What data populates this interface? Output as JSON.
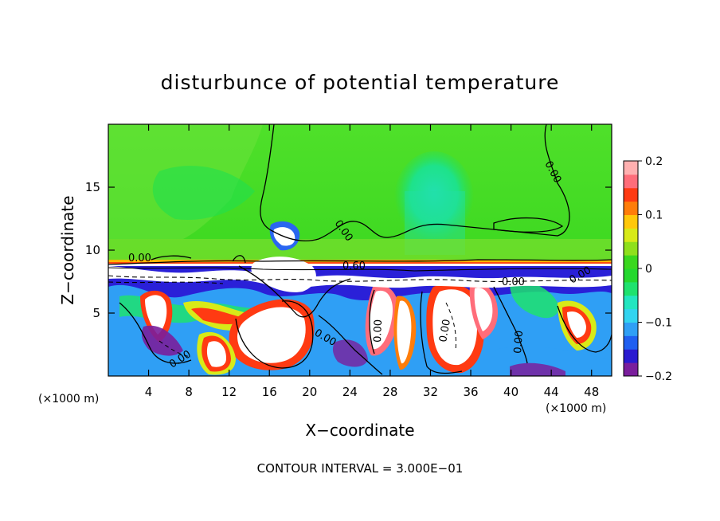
{
  "chart_data": {
    "type": "heatmap",
    "title": "disturbunce of potential temperature",
    "xlabel": "X−coordinate",
    "ylabel": "Z−coordinate",
    "x_unit_left": "(×1000 m)",
    "x_unit_right": "(×1000 m)",
    "xlim": [
      0,
      50
    ],
    "ylim": [
      0,
      20
    ],
    "x_ticks": [
      "4",
      "8",
      "12",
      "16",
      "20",
      "24",
      "28",
      "32",
      "36",
      "40",
      "44",
      "48"
    ],
    "x_tick_values": [
      4,
      8,
      12,
      16,
      20,
      24,
      28,
      32,
      36,
      40,
      44,
      48
    ],
    "y_ticks": [
      "5",
      "10",
      "15"
    ],
    "y_tick_values": [
      5,
      10,
      15
    ],
    "colorbar": {
      "min": -0.2,
      "max": 0.2,
      "tick_labels": [
        "0.2",
        "0.1",
        "0",
        "−0.1",
        "−0.2"
      ],
      "tick_values": [
        0.2,
        0.1,
        0,
        -0.1,
        -0.2
      ],
      "colors": [
        "#7a1e9c",
        "#2a1bd0",
        "#1f5ff0",
        "#2f9ff5",
        "#32d4f0",
        "#22e6c0",
        "#1ee26e",
        "#24d82e",
        "#3ad81e",
        "#8fe01c",
        "#d8ea18",
        "#ffc80a",
        "#ff7d0a",
        "#ff3a12",
        "#ff6d7a",
        "#ffb0b0"
      ]
    },
    "contour_labels": [
      "0.00",
      "0.00",
      "0.00",
      "0.00",
      "0.60",
      "0.00",
      "0.00",
      "0.00",
      "0.00",
      "0.00",
      "0.00"
    ],
    "footer": "CONTOUR INTERVAL = 3.000E−01"
  }
}
